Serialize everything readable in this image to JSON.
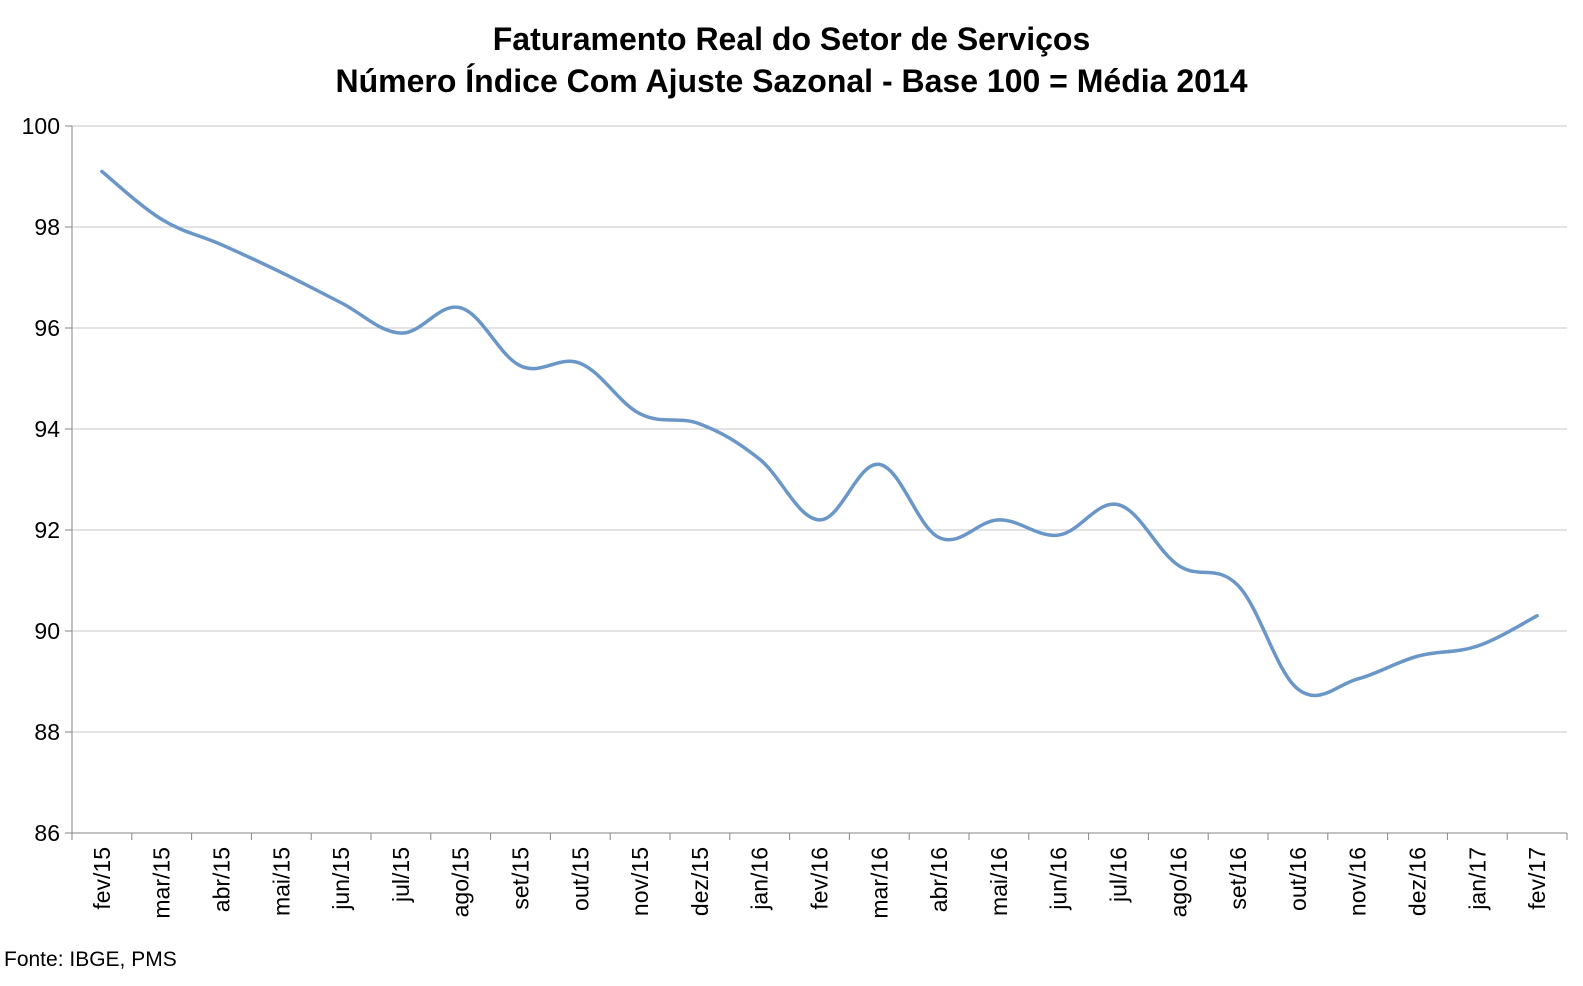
{
  "chart_data": {
    "type": "line",
    "title": "Faturamento Real do Setor de Serviços",
    "subtitle": "Número Índice Com Ajuste Sazonal - Base 100 = Média 2014",
    "xlabel": "",
    "ylabel": "",
    "ylim": [
      86,
      100
    ],
    "yticks": [
      "86",
      "88",
      "90",
      "92",
      "94",
      "96",
      "98",
      "100"
    ],
    "grid": true,
    "categories": [
      "fev/15",
      "mar/15",
      "abr/15",
      "mai/15",
      "jun/15",
      "jul/15",
      "ago/15",
      "set/15",
      "out/15",
      "nov/15",
      "dez/15",
      "jan/16",
      "fev/16",
      "mar/16",
      "abr/16",
      "mai/16",
      "jun/16",
      "jul/16",
      "ago/16",
      "set/16",
      "out/16",
      "nov/16",
      "dez/16",
      "jan/17",
      "fev/17"
    ],
    "series": [
      {
        "values": [
          99.1,
          98.15,
          97.65,
          97.1,
          96.5,
          95.9,
          96.4,
          95.25,
          95.3,
          94.3,
          94.1,
          93.4,
          92.2,
          93.3,
          91.85,
          92.2,
          91.9,
          92.5,
          91.3,
          90.9,
          88.85,
          89.05,
          89.5,
          89.7,
          90.3
        ],
        "color": "#6A96C8"
      }
    ]
  },
  "source": "Fonte: IBGE, PMS"
}
